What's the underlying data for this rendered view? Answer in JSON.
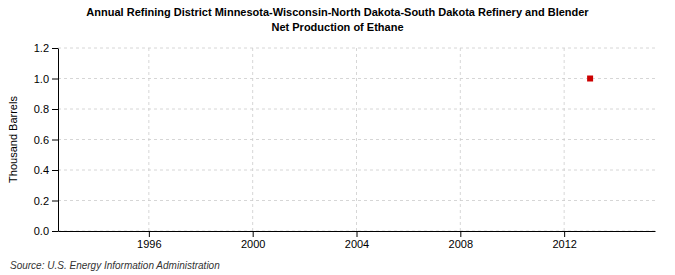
{
  "chart_data": {
    "type": "scatter",
    "title": "Annual Refining District Minnesota-Wisconsin-North Dakota-South Dakota Refinery and Blender",
    "subtitle": "Net Production of Ethane",
    "ylabel": "Thousand Barrels",
    "source": "Source: U.S. Energy Information Administration",
    "x": [
      2013
    ],
    "values": [
      1.0
    ],
    "color": "#cc0000",
    "marker": "square",
    "xlim": [
      1992.5,
      2015.5
    ],
    "xticks": [
      1996,
      2000,
      2004,
      2008,
      2012
    ],
    "ylim": [
      0.0,
      1.2
    ],
    "yticks": [
      {
        "value": 0.0,
        "label": "0.0"
      },
      0.2,
      0.4,
      0.6,
      0.8,
      {
        "value": 1.0,
        "label": "1.0"
      },
      1.2
    ],
    "grid": true
  }
}
